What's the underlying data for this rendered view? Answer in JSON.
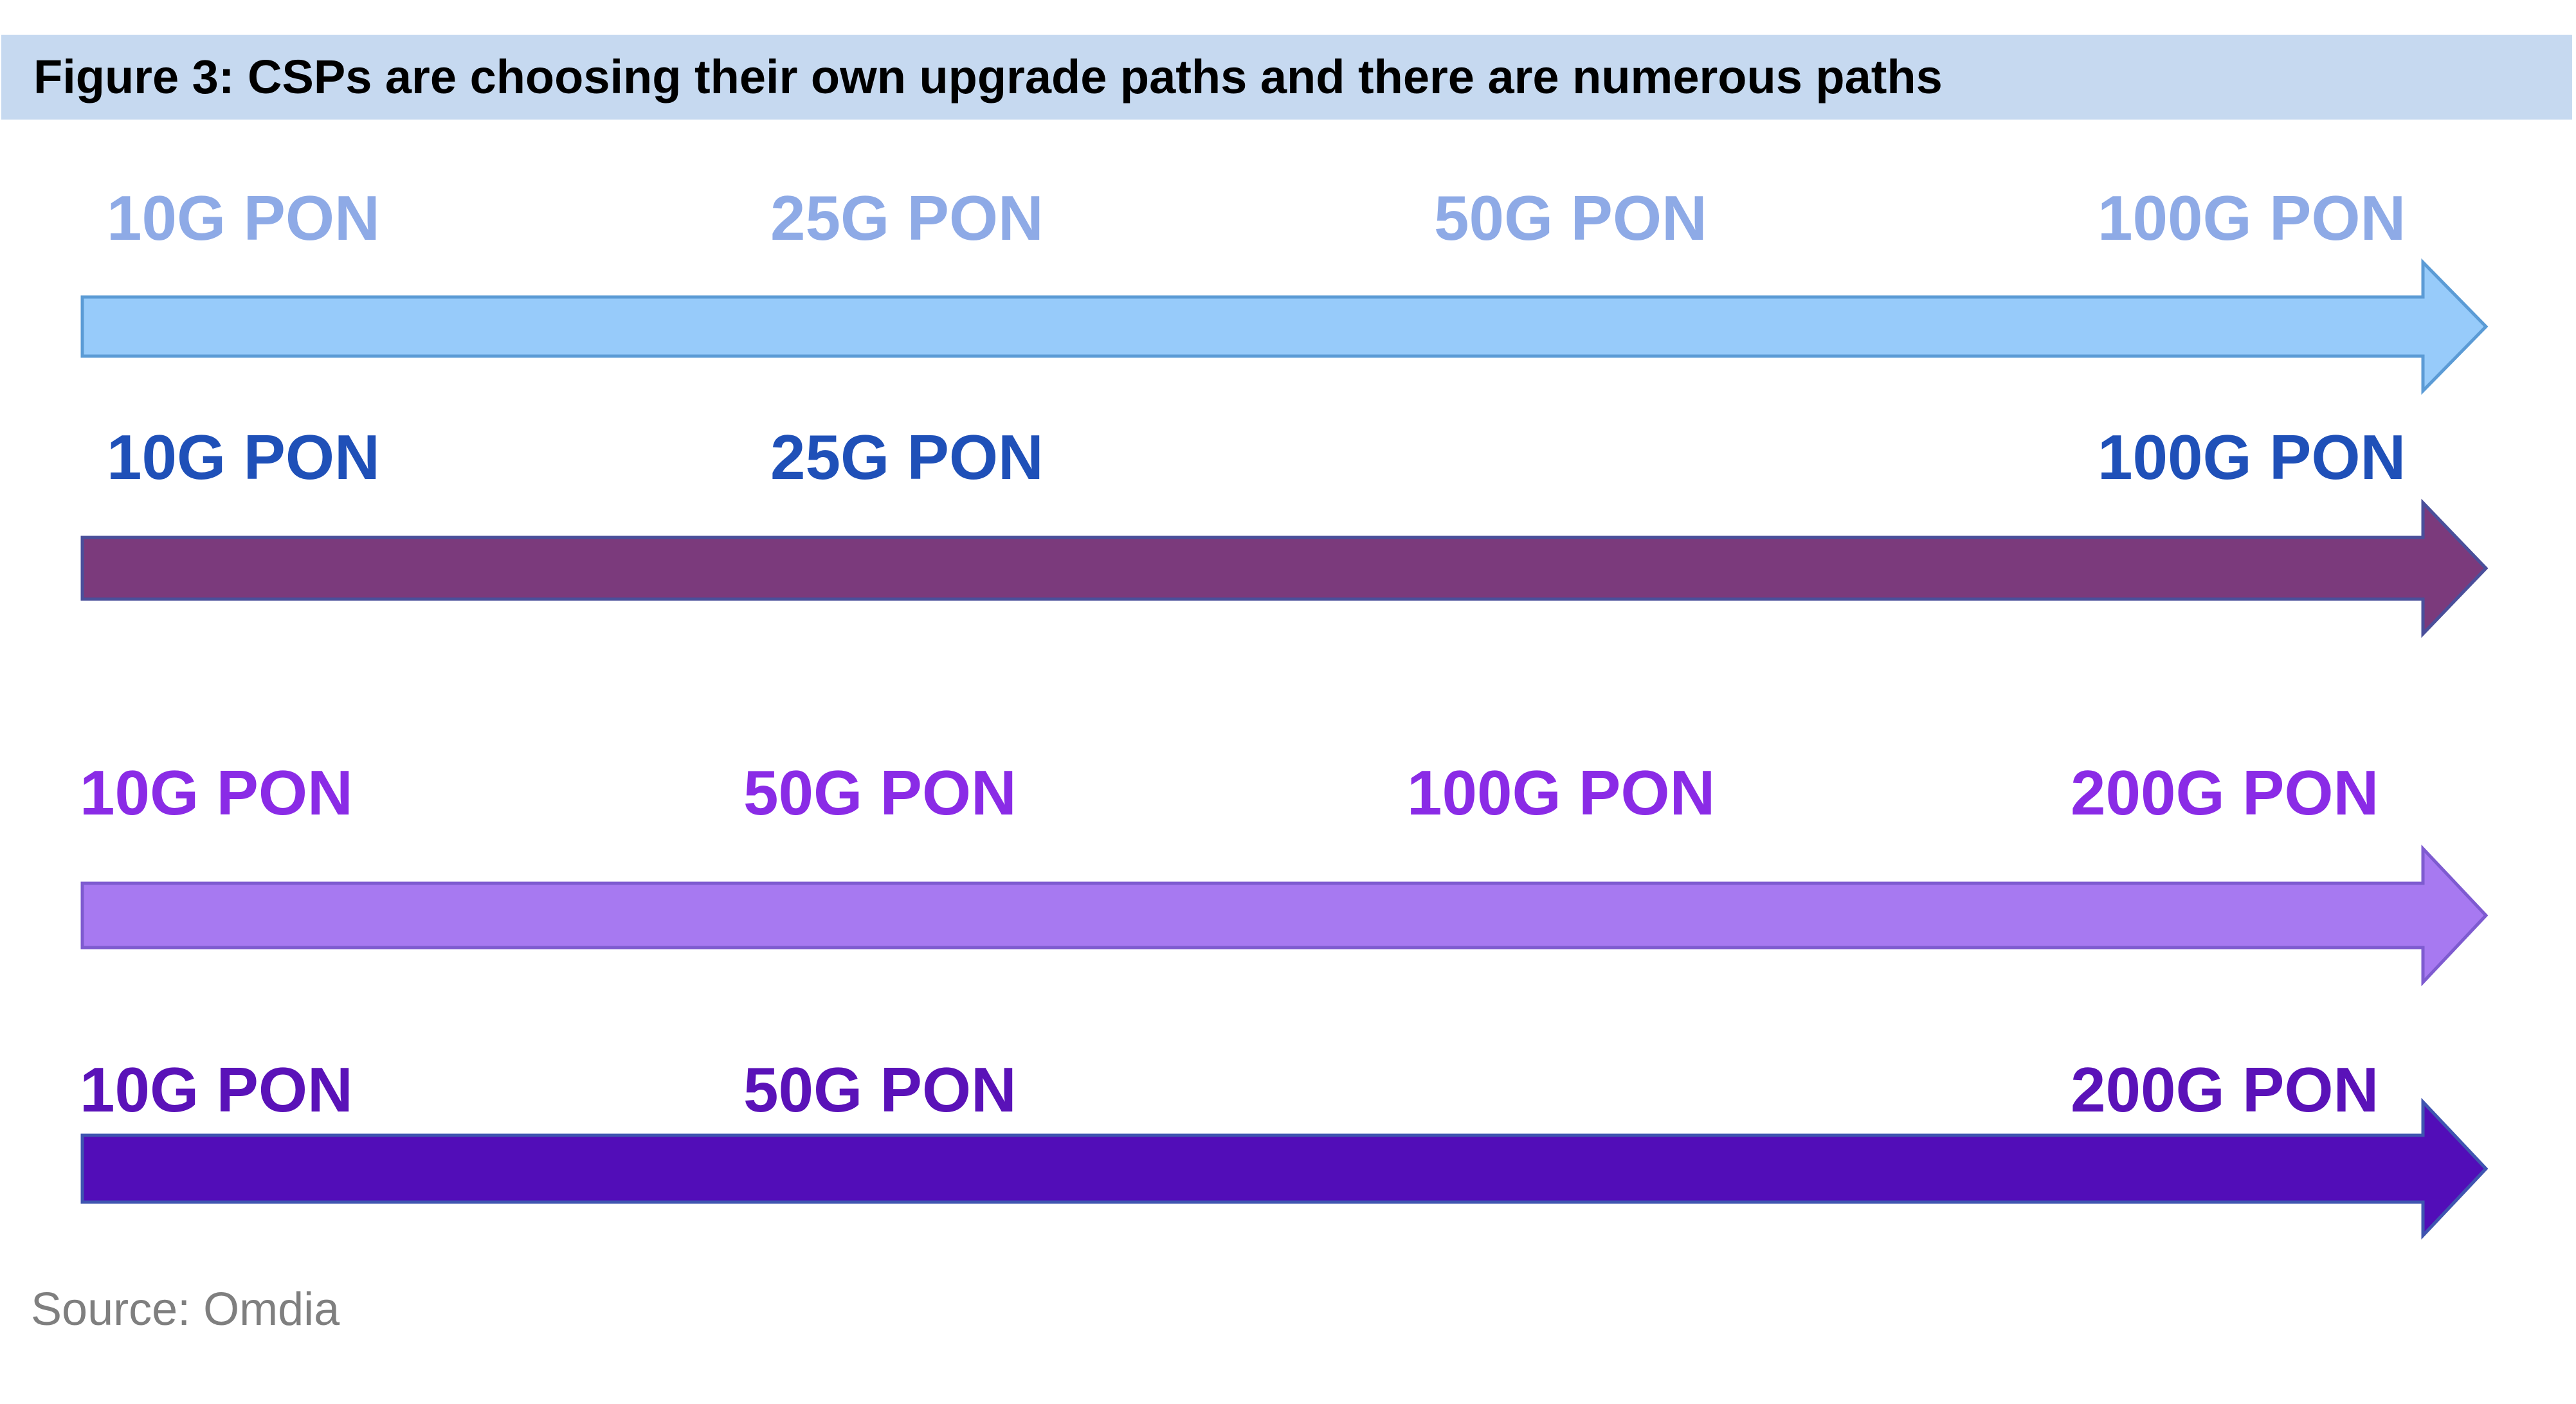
{
  "title": "Figure 3: CSPs are choosing their own upgrade paths and there are numerous paths",
  "source": "Source: Omdia",
  "paths": [
    {
      "color": "#8eaae6",
      "arrow_fill": "#97cbfa",
      "arrow_stroke": "#5b9bd5",
      "stages": [
        "10G PON",
        "25G PON",
        "50G PON",
        "100G PON"
      ]
    },
    {
      "color": "#1f50b8",
      "arrow_fill": "#7b3a7c",
      "arrow_stroke": "#4a4f9a",
      "stages": [
        "10G PON",
        "25G PON",
        "100G PON"
      ]
    },
    {
      "color": "#8a2be6",
      "arrow_fill": "#a779f1",
      "arrow_stroke": "#7e5bd0",
      "stages": [
        "10G PON",
        "50G PON",
        "100G PON",
        "200G PON"
      ]
    },
    {
      "color": "#5a12b8",
      "arrow_fill": "#520db8",
      "arrow_stroke": "#3f55b0",
      "stages": [
        "10G PON",
        "50G PON",
        "200G PON"
      ]
    }
  ]
}
